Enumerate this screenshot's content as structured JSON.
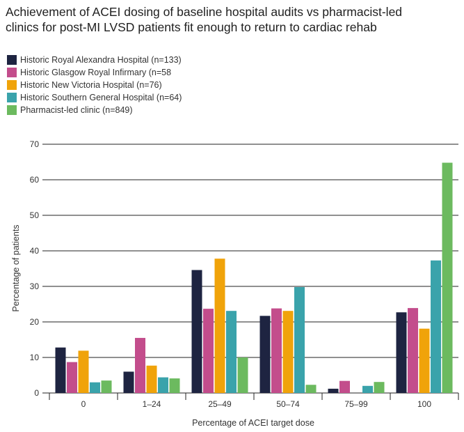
{
  "chart_data": {
    "type": "bar",
    "title": [
      "Achievement of ACEI dosing of baseline hospital audits vs pharmacist-led",
      "clinics for post-MI LVSD patients fit enough to return to cardiac rehab"
    ],
    "xlabel": "Percentage of ACEI target dose",
    "ylabel": "Percentage of patients",
    "ylim": [
      0,
      70
    ],
    "yticks": [
      0,
      10,
      20,
      30,
      40,
      50,
      60,
      70
    ],
    "grid": true,
    "categories": [
      "0",
      "1–24",
      "25–49",
      "50–74",
      "75–99",
      "100"
    ],
    "series": [
      {
        "name": "Historic Royal Alexandra Hospital (n=133)",
        "color": "#1e2441",
        "values": [
          12.8,
          6.0,
          34.6,
          21.7,
          1.2,
          22.7
        ]
      },
      {
        "name": "Historic Glasgow Royal Infirmary (n=58",
        "color": "#c34d8c",
        "values": [
          8.7,
          15.5,
          23.7,
          23.8,
          3.4,
          23.9
        ]
      },
      {
        "name": "Historic New Victoria Hospital (n=76)",
        "color": "#f0a30a",
        "values": [
          11.9,
          7.7,
          37.8,
          23.1,
          0.0,
          18.1
        ]
      },
      {
        "name": "Historic Southern General Hospital (n=64)",
        "color": "#3aa3ab",
        "values": [
          3.0,
          4.4,
          23.1,
          29.8,
          2.0,
          37.3
        ]
      },
      {
        "name": "Pharmacist-led clinic (n=849)",
        "color": "#6cba5f",
        "values": [
          3.5,
          4.1,
          10.0,
          2.3,
          3.1,
          64.8
        ]
      }
    ]
  }
}
